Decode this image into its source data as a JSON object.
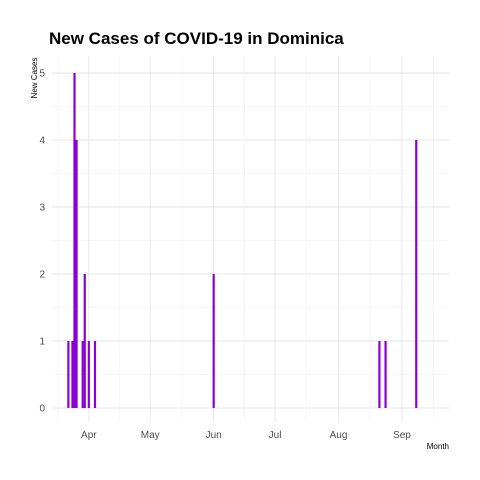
{
  "chart_data": {
    "type": "bar",
    "title": "New Cases of COVID-19 in Dominica",
    "xlabel": "Month",
    "ylabel": "New Cases",
    "x_tick_labels": [
      "Apr",
      "May",
      "Jun",
      "Jul",
      "Aug",
      "Sep"
    ],
    "x_tick_dates": [
      "2020-04-01",
      "2020-05-01",
      "2020-06-01",
      "2020-07-01",
      "2020-08-01",
      "2020-09-01"
    ],
    "xlim": [
      "2020-03-14",
      "2020-09-24"
    ],
    "ylim": [
      0,
      5
    ],
    "y_ticks": [
      0,
      1,
      2,
      3,
      4,
      5
    ],
    "grid": true,
    "bar_color": "#8B00D6",
    "series": [
      {
        "x": [
          "2020-03-22",
          "2020-03-24",
          "2020-03-25",
          "2020-03-26",
          "2020-03-29",
          "2020-03-30",
          "2020-04-01",
          "2020-04-04",
          "2020-06-01",
          "2020-08-21",
          "2020-08-24",
          "2020-09-08"
        ],
        "values": [
          1,
          1,
          5,
          4,
          1,
          2,
          1,
          1,
          2,
          1,
          1,
          4
        ]
      }
    ]
  }
}
